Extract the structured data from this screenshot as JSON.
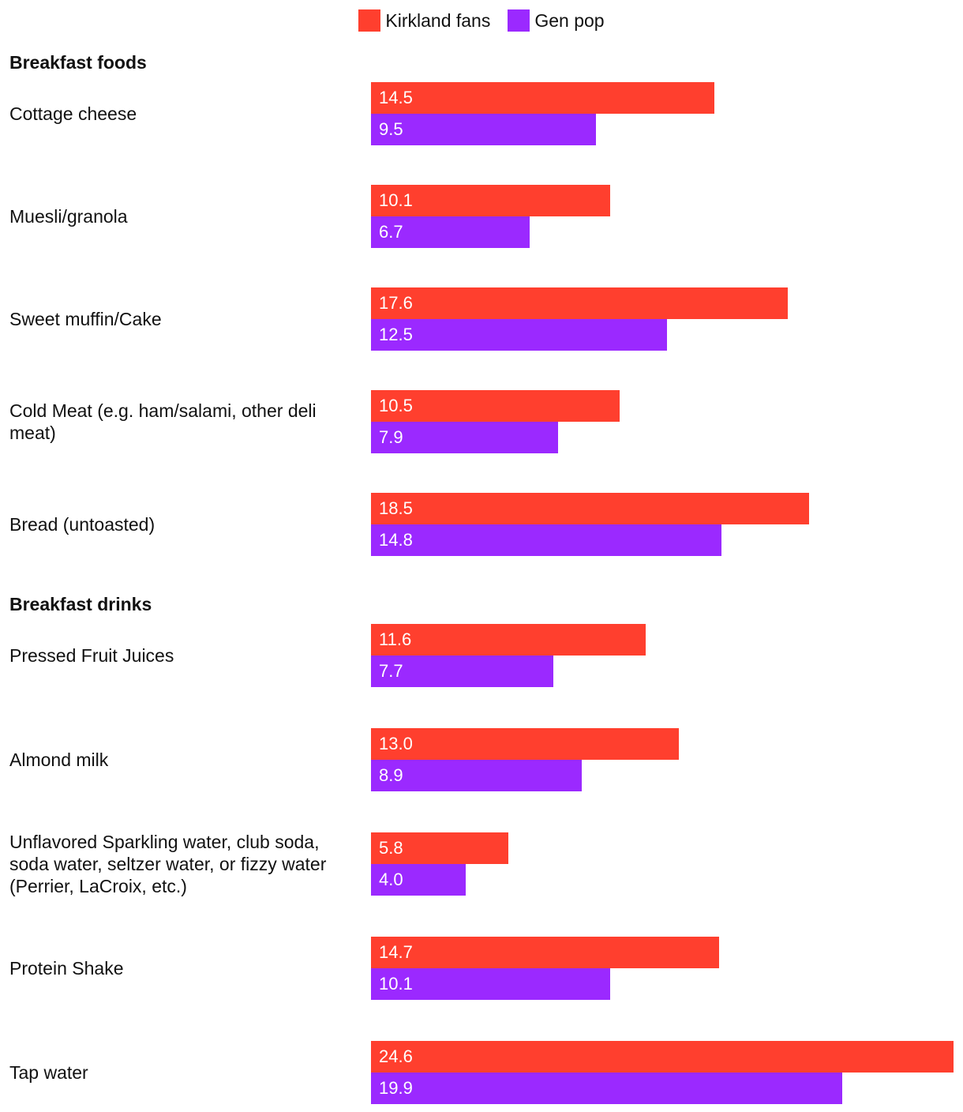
{
  "chart_data": {
    "type": "bar",
    "orientation": "horizontal",
    "legend": [
      {
        "name": "Kirkland fans",
        "color": "#ff3f2e"
      },
      {
        "name": "Gen pop",
        "color": "#9b29ff"
      }
    ],
    "groups": [
      {
        "title": "Breakfast foods",
        "items": [
          {
            "label": "Cottage cheese",
            "kirkland": 14.5,
            "genpop": 9.5
          },
          {
            "label": "Muesli/granola",
            "kirkland": 10.1,
            "genpop": 6.7
          },
          {
            "label": "Sweet muffin/Cake",
            "kirkland": 17.6,
            "genpop": 12.5
          },
          {
            "label": "Cold Meat (e.g. ham/salami, other deli meat)",
            "kirkland": 10.5,
            "genpop": 7.9
          },
          {
            "label": "Bread (untoasted)",
            "kirkland": 18.5,
            "genpop": 14.8
          }
        ]
      },
      {
        "title": "Breakfast drinks",
        "items": [
          {
            "label": "Pressed Fruit Juices",
            "kirkland": 11.6,
            "genpop": 7.7
          },
          {
            "label": "Almond milk",
            "kirkland": 13.0,
            "genpop": 8.9
          },
          {
            "label": "Unflavored Sparkling water, club soda, soda water, seltzer water, or fizzy water (Perrier, LaCroix, etc.)",
            "kirkland": 5.8,
            "genpop": 4.0
          },
          {
            "label": "Protein Shake",
            "kirkland": 14.7,
            "genpop": 10.1
          },
          {
            "label": "Tap water",
            "kirkland": 24.6,
            "genpop": 19.9
          }
        ]
      }
    ],
    "xlim": [
      0,
      24.6
    ]
  }
}
